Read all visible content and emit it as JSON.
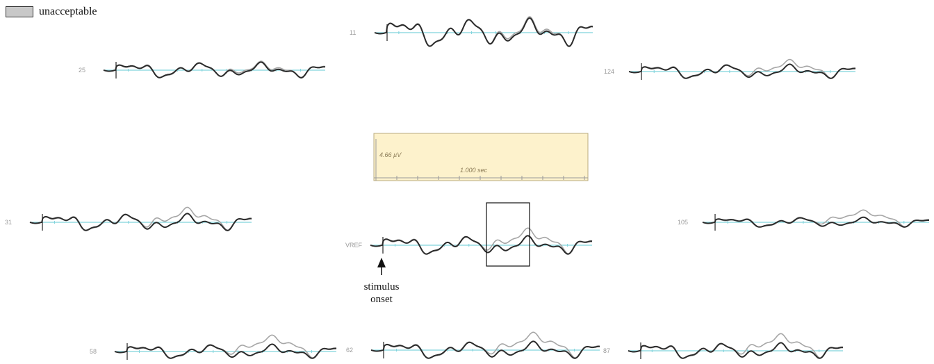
{
  "legend": {
    "label": "unacceptable",
    "swatch_color": "#c8c8c8"
  },
  "channels": [
    {
      "id": "ch-11",
      "label": "11"
    },
    {
      "id": "ch-25",
      "label": "25"
    },
    {
      "id": "ch-124",
      "label": "124"
    },
    {
      "id": "ch-31",
      "label": "31"
    },
    {
      "id": "ch-vref",
      "label": "VREF"
    },
    {
      "id": "ch-105",
      "label": "105"
    },
    {
      "id": "ch-58",
      "label": "58"
    },
    {
      "id": "ch-62",
      "label": "62"
    },
    {
      "id": "ch-87",
      "label": "87"
    }
  ],
  "scale_box": {
    "amplitude": "4.66 µV",
    "time": "1.000 sec",
    "background": "#fdf2cc"
  },
  "annotation": {
    "line1": "stimulus",
    "line2": "onset"
  },
  "colors": {
    "baseline": "#7fd3dc",
    "waveform_dark": "#2b2b2b",
    "waveform_light": "#a6a6a6"
  }
}
